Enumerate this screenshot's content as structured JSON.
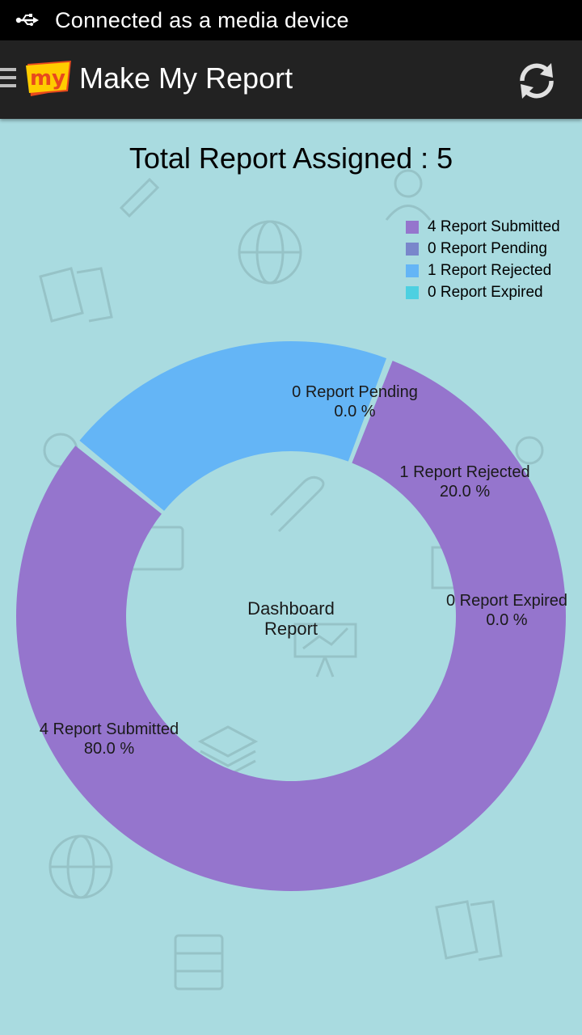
{
  "status_bar": {
    "icon": "usb-icon",
    "text": "Connected as a media device"
  },
  "action_bar": {
    "menu_icon": "hamburger-icon",
    "logo_text": "my",
    "title": "Make My Report",
    "refresh_icon": "refresh-icon"
  },
  "dashboard": {
    "total_label": "Total Report Assigned : 5",
    "center_label_line1": "Dashboard",
    "center_label_line2": "Report"
  },
  "chart_data": {
    "type": "pie",
    "donut": true,
    "categories": [
      "4 Report Submitted",
      "0 Report Pending",
      "1 Report Rejected",
      "0 Report Expired"
    ],
    "values": [
      4,
      0,
      1,
      0
    ],
    "percent_labels": [
      "80.0 %",
      "0.0 %",
      "20.0 %",
      "0.0 %"
    ],
    "colors": [
      "#9575cd",
      "#7986cb",
      "#64b5f6",
      "#4dd0e1"
    ],
    "legend_placement": "top-right",
    "center_text": "Dashboard Report"
  }
}
